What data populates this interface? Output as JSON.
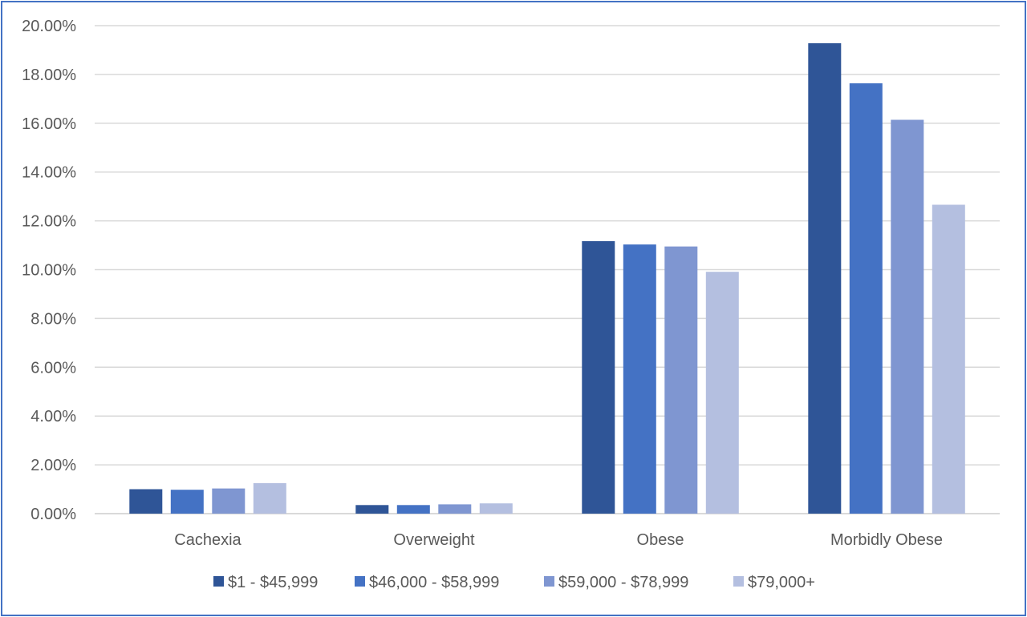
{
  "chart_data": {
    "type": "bar",
    "title": "",
    "xlabel": "",
    "ylabel": "",
    "ylim": [
      0,
      0.2
    ],
    "y_ticks": [
      "0.00%",
      "2.00%",
      "4.00%",
      "6.00%",
      "8.00%",
      "10.00%",
      "12.00%",
      "14.00%",
      "16.00%",
      "18.00%",
      "20.00%"
    ],
    "grid": true,
    "legend_position": "bottom",
    "categories": [
      "Cachexia",
      "Overweight",
      "Obese",
      "Morbidly Obese"
    ],
    "series": [
      {
        "name": "$1 - $45,999",
        "color": "#2f5597",
        "values": [
          0.01,
          0.0035,
          0.1117,
          0.1928
        ]
      },
      {
        "name": "$46,000 - $58,999",
        "color": "#4472c4",
        "values": [
          0.0098,
          0.0035,
          0.1103,
          0.1764
        ]
      },
      {
        "name": "$59,000 - $78,999",
        "color": "#7f96d1",
        "values": [
          0.0103,
          0.0038,
          0.1095,
          0.1614
        ]
      },
      {
        "name": "$79,000+",
        "color": "#b4bfe0",
        "values": [
          0.0125,
          0.0042,
          0.0991,
          0.1266
        ]
      }
    ],
    "gridline_color": "#d9d9d9"
  }
}
